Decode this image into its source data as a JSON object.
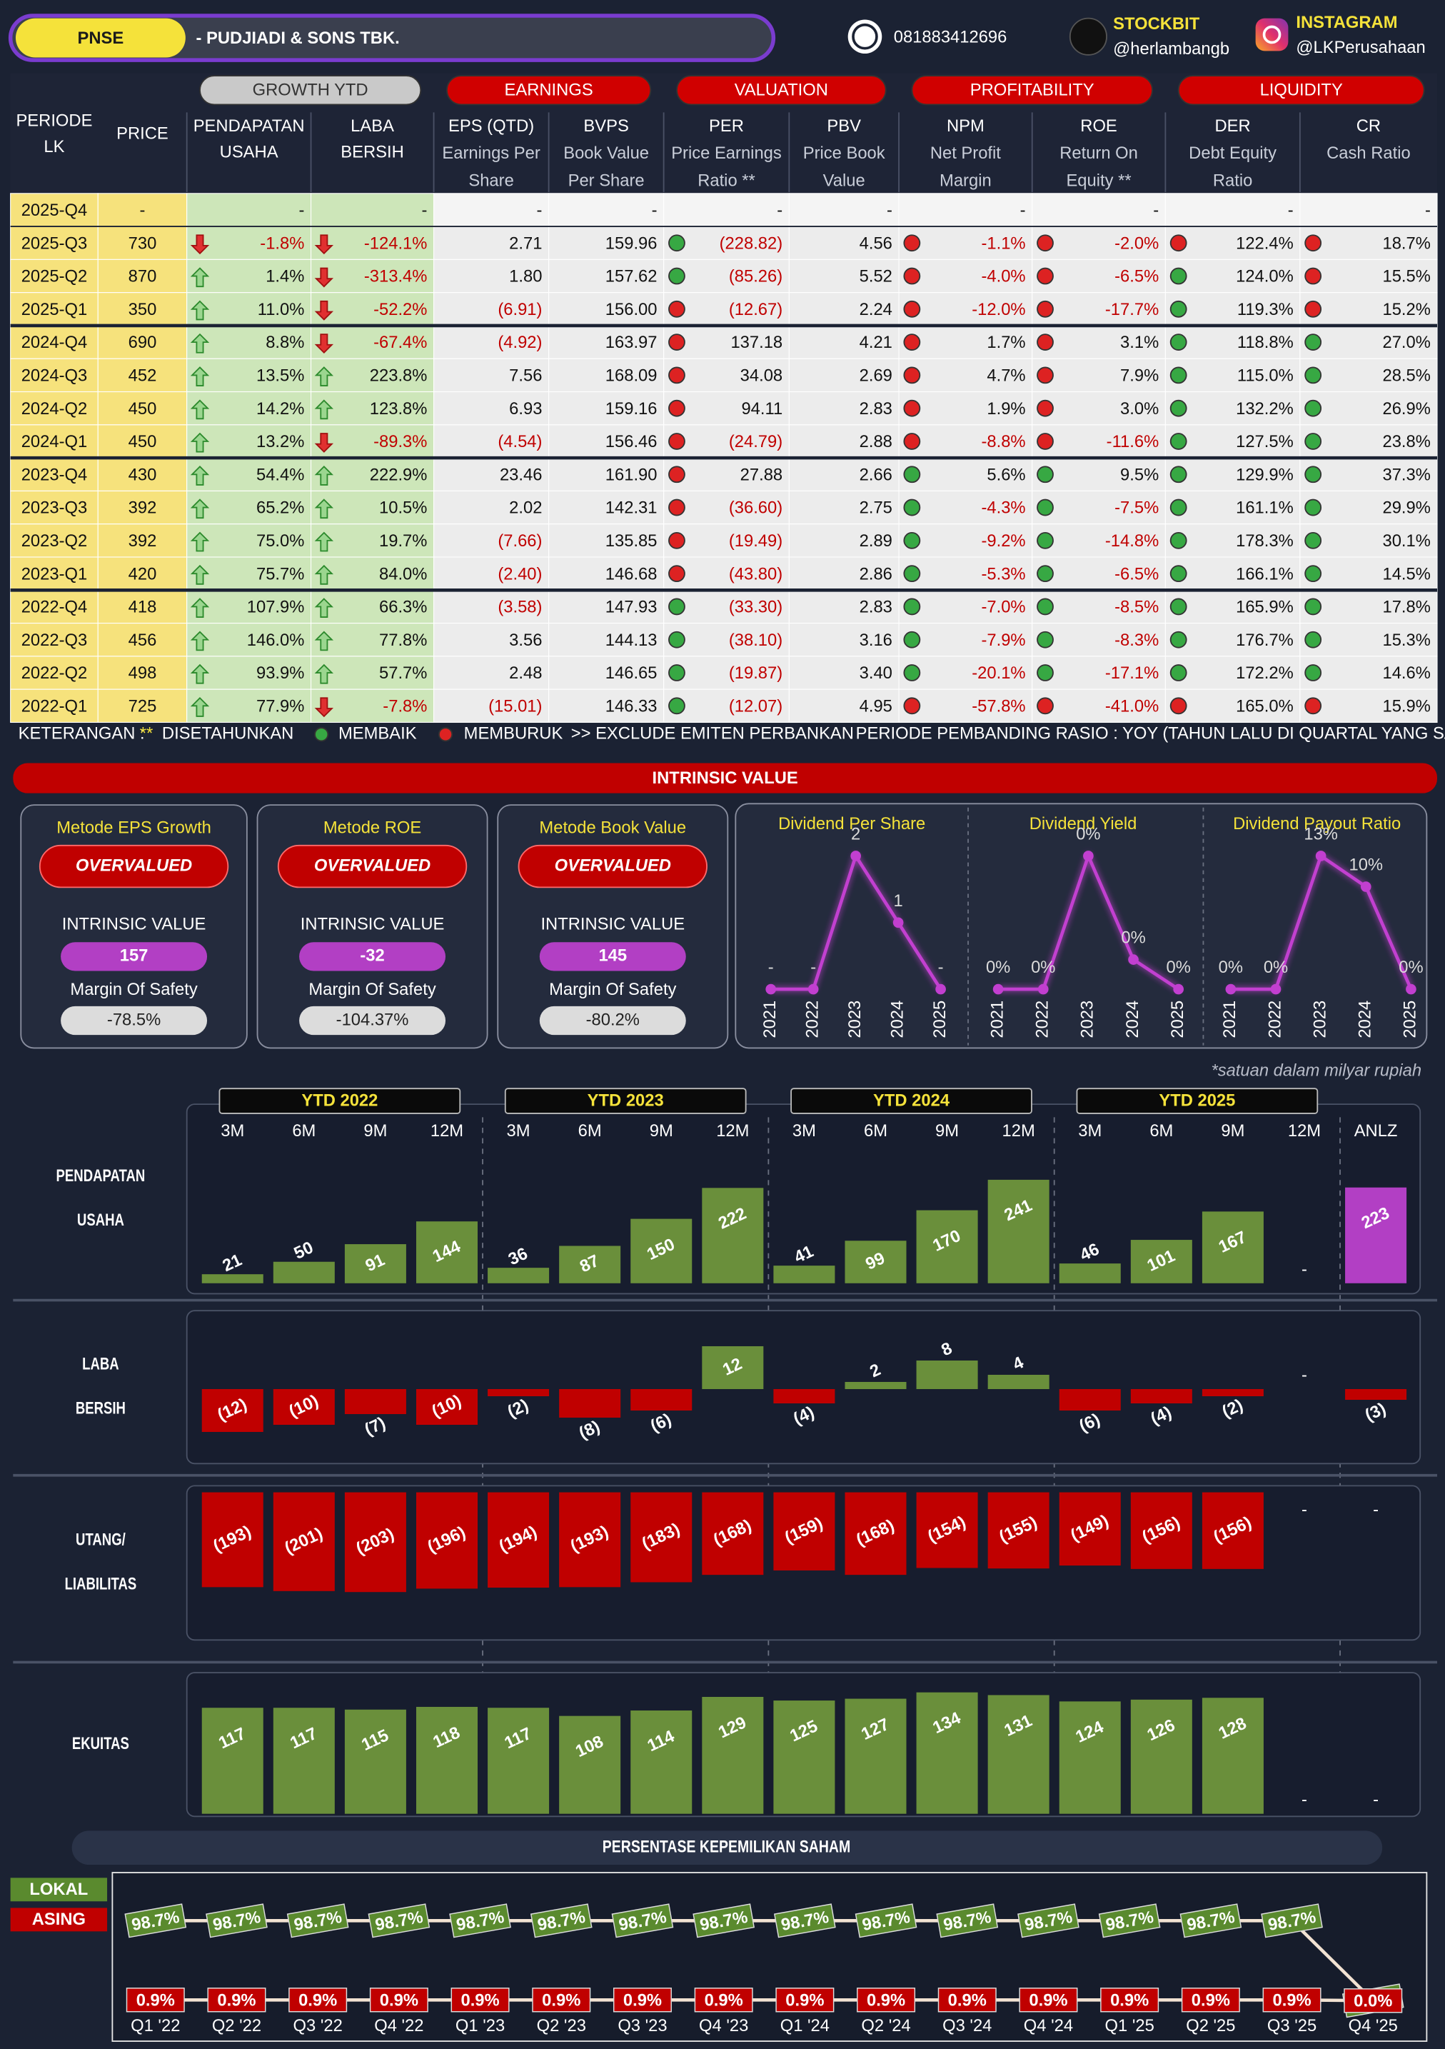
{
  "header": {
    "ticker": "PNSE",
    "company": "- PUDJIADI & SONS TBK.",
    "phone": "081883412696",
    "stockbit_label": "STOCKBIT",
    "stockbit_handle": "@herlambangb",
    "instagram_label": "INSTAGRAM",
    "instagram_handle": "@LKPerusahaan"
  },
  "table": {
    "groups": [
      {
        "label": "GROWTH YTD",
        "color": "#c9c9c9"
      },
      {
        "label": "EARNINGS",
        "color": "#d00000"
      },
      {
        "label": "VALUATION",
        "color": "#d00000"
      },
      {
        "label": "PROFITABILITY",
        "color": "#d00000"
      },
      {
        "label": "LIQUIDITY",
        "color": "#d00000"
      }
    ],
    "columns": [
      [
        "PERIODE",
        "LK"
      ],
      [
        "PRICE"
      ],
      [
        "PENDAPATAN",
        "USAHA"
      ],
      [
        "LABA",
        "BERSIH"
      ],
      [
        "EPS (QTD)",
        "Earnings Per",
        "Share"
      ],
      [
        "BVPS",
        "Book Value",
        "Per Share"
      ],
      [
        "PER",
        "Price Earnings",
        "Ratio **"
      ],
      [
        "PBV",
        "Price Book",
        "Value"
      ],
      [
        "NPM",
        "Net Profit",
        "Margin"
      ],
      [
        "ROE",
        "Return On",
        "Equity **"
      ],
      [
        "DER",
        "Debt Equity",
        "Ratio"
      ],
      [
        "CR",
        "Cash Ratio"
      ]
    ],
    "rows": [
      {
        "cells": [
          "2025-Q4",
          "-",
          "-",
          "-",
          "-",
          "-",
          "-",
          "-",
          "-",
          "-",
          "-",
          "-"
        ],
        "arrows": [
          null,
          null
        ],
        "dots": null
      },
      {
        "cells": [
          "2025-Q3",
          "730",
          "-1.8%",
          "-124.1%",
          "2.71",
          "159.96",
          "(228.82)",
          "4.56",
          "-1.1%",
          "-2.0%",
          "122.4%",
          "18.7%"
        ],
        "arrows": [
          "down",
          "down"
        ],
        "dots": [
          "#37a843",
          "#dd2222",
          "#dd2222",
          "#dd2222",
          "#dd2222"
        ]
      },
      {
        "cells": [
          "2025-Q2",
          "870",
          "1.4%",
          "-313.4%",
          "1.80",
          "157.62",
          "(85.26)",
          "5.52",
          "-4.0%",
          "-6.5%",
          "124.0%",
          "15.5%"
        ],
        "arrows": [
          "up",
          "down"
        ],
        "dots": [
          "#37a843",
          "#dd2222",
          "#dd2222",
          "#37a843",
          "#dd2222"
        ]
      },
      {
        "cells": [
          "2025-Q1",
          "350",
          "11.0%",
          "-52.2%",
          "(6.91)",
          "156.00",
          "(12.67)",
          "2.24",
          "-12.0%",
          "-17.7%",
          "119.3%",
          "15.2%"
        ],
        "arrows": [
          "up",
          "down"
        ],
        "dots": [
          "#dd2222",
          "#dd2222",
          "#dd2222",
          "#37a843",
          "#dd2222"
        ]
      },
      {
        "cells": [
          "2024-Q4",
          "690",
          "8.8%",
          "-67.4%",
          "(4.92)",
          "163.97",
          "137.18",
          "4.21",
          "1.7%",
          "3.1%",
          "118.8%",
          "27.0%"
        ],
        "arrows": [
          "up",
          "down"
        ],
        "dots": [
          "#dd2222",
          "#dd2222",
          "#dd2222",
          "#37a843",
          "#37a843"
        ]
      },
      {
        "cells": [
          "2024-Q3",
          "452",
          "13.5%",
          "223.8%",
          "7.56",
          "168.09",
          "34.08",
          "2.69",
          "4.7%",
          "7.9%",
          "115.0%",
          "28.5%"
        ],
        "arrows": [
          "up",
          "up"
        ],
        "dots": [
          "#dd2222",
          "#dd2222",
          "#dd2222",
          "#37a843",
          "#37a843"
        ]
      },
      {
        "cells": [
          "2024-Q2",
          "450",
          "14.2%",
          "123.8%",
          "6.93",
          "159.16",
          "94.11",
          "2.83",
          "1.9%",
          "3.0%",
          "132.2%",
          "26.9%"
        ],
        "arrows": [
          "up",
          "up"
        ],
        "dots": [
          "#dd2222",
          "#dd2222",
          "#dd2222",
          "#37a843",
          "#37a843"
        ]
      },
      {
        "cells": [
          "2024-Q1",
          "450",
          "13.2%",
          "-89.3%",
          "(4.54)",
          "156.46",
          "(24.79)",
          "2.88",
          "-8.8%",
          "-11.6%",
          "127.5%",
          "23.8%"
        ],
        "arrows": [
          "up",
          "down"
        ],
        "dots": [
          "#dd2222",
          "#dd2222",
          "#dd2222",
          "#37a843",
          "#37a843"
        ]
      },
      {
        "cells": [
          "2023-Q4",
          "430",
          "54.4%",
          "222.9%",
          "23.46",
          "161.90",
          "27.88",
          "2.66",
          "5.6%",
          "9.5%",
          "129.9%",
          "37.3%"
        ],
        "arrows": [
          "up",
          "up"
        ],
        "dots": [
          "#dd2222",
          "#37a843",
          "#37a843",
          "#37a843",
          "#37a843"
        ]
      },
      {
        "cells": [
          "2023-Q3",
          "392",
          "65.2%",
          "10.5%",
          "2.02",
          "142.31",
          "(36.60)",
          "2.75",
          "-4.3%",
          "-7.5%",
          "161.1%",
          "29.9%"
        ],
        "arrows": [
          "up",
          "up"
        ],
        "dots": [
          "#dd2222",
          "#37a843",
          "#37a843",
          "#37a843",
          "#37a843"
        ]
      },
      {
        "cells": [
          "2023-Q2",
          "392",
          "75.0%",
          "19.7%",
          "(7.66)",
          "135.85",
          "(19.49)",
          "2.89",
          "-9.2%",
          "-14.8%",
          "178.3%",
          "30.1%"
        ],
        "arrows": [
          "up",
          "up"
        ],
        "dots": [
          "#dd2222",
          "#37a843",
          "#37a843",
          "#37a843",
          "#37a843"
        ]
      },
      {
        "cells": [
          "2023-Q1",
          "420",
          "75.7%",
          "84.0%",
          "(2.40)",
          "146.68",
          "(43.80)",
          "2.86",
          "-5.3%",
          "-6.5%",
          "166.1%",
          "14.5%"
        ],
        "arrows": [
          "up",
          "up"
        ],
        "dots": [
          "#dd2222",
          "#37a843",
          "#37a843",
          "#37a843",
          "#37a843"
        ]
      },
      {
        "cells": [
          "2022-Q4",
          "418",
          "107.9%",
          "66.3%",
          "(3.58)",
          "147.93",
          "(33.30)",
          "2.83",
          "-7.0%",
          "-8.5%",
          "165.9%",
          "17.8%"
        ],
        "arrows": [
          "up",
          "up"
        ],
        "dots": [
          "#37a843",
          "#37a843",
          "#37a843",
          "#37a843",
          "#37a843"
        ]
      },
      {
        "cells": [
          "2022-Q3",
          "456",
          "146.0%",
          "77.8%",
          "3.56",
          "144.13",
          "(38.10)",
          "3.16",
          "-7.9%",
          "-8.3%",
          "176.7%",
          "15.3%"
        ],
        "arrows": [
          "up",
          "up"
        ],
        "dots": [
          "#37a843",
          "#37a843",
          "#37a843",
          "#37a843",
          "#37a843"
        ]
      },
      {
        "cells": [
          "2022-Q2",
          "498",
          "93.9%",
          "57.7%",
          "2.48",
          "146.65",
          "(19.87)",
          "3.40",
          "-20.1%",
          "-17.1%",
          "172.2%",
          "14.6%"
        ],
        "arrows": [
          "up",
          "up"
        ],
        "dots": [
          "#37a843",
          "#37a843",
          "#37a843",
          "#37a843",
          "#37a843"
        ]
      },
      {
        "cells": [
          "2022-Q1",
          "725",
          "77.9%",
          "-7.8%",
          "(15.01)",
          "146.33",
          "(12.07)",
          "4.95",
          "-57.8%",
          "-41.0%",
          "165.0%",
          "15.9%"
        ],
        "arrows": [
          "up",
          "down"
        ],
        "dots": [
          "#37a843",
          "#dd2222",
          "#dd2222",
          "#dd2222",
          "#dd2222"
        ]
      }
    ]
  },
  "notes": {
    "label": "KETERANGAN :",
    "annualized_mark": "**",
    "annualized": "DISETAHUNKAN",
    "better": "MEMBAIK",
    "better_color": "#37a843",
    "worse": "MEMBURUK",
    "worse_color": "#dd2222",
    "exclude": ">> EXCLUDE EMITEN PERBANKAN",
    "comparison": "PERIODE PEMBANDING RASIO : YOY (TAHUN LALU DI QUARTAL YANG SAMA)"
  },
  "intrinsic": {
    "title": "INTRINSIC VALUE",
    "methods": [
      {
        "name": "Metode EPS Growth",
        "verdict": "OVERVALUED",
        "value_label": "INTRINSIC VALUE",
        "value": "157",
        "mos_label": "Margin Of Safety",
        "mos": "-78.5%"
      },
      {
        "name": "Metode ROE",
        "verdict": "OVERVALUED",
        "value_label": "INTRINSIC VALUE",
        "value": "-32",
        "mos_label": "Margin Of Safety",
        "mos": "-104.37%"
      },
      {
        "name": "Metode Book Value",
        "verdict": "OVERVALUED",
        "value_label": "INTRINSIC VALUE",
        "value": "145",
        "mos_label": "Margin Of Safety",
        "mos": "-80.2%"
      }
    ]
  },
  "chart_data": [
    {
      "type": "line",
      "title": "Dividend Per Share",
      "categories": [
        "2021",
        "2022",
        "2023",
        "2024",
        "2025"
      ],
      "values": [
        0,
        0,
        2,
        1,
        0
      ],
      "value_labels": [
        "-",
        "-",
        "2",
        "1",
        "-"
      ],
      "color": "#c23fd0"
    },
    {
      "type": "line",
      "title": "Dividend Yield",
      "categories": [
        "2021",
        "2022",
        "2023",
        "2024",
        "2025"
      ],
      "values": [
        0,
        0,
        0.45,
        0.1,
        0
      ],
      "value_labels": [
        "0%",
        "0%",
        "0%",
        "0%",
        "0%"
      ],
      "color": "#c23fd0"
    },
    {
      "type": "line",
      "title": "Dividend Payout Ratio",
      "categories": [
        "2021",
        "2022",
        "2023",
        "2024",
        "2025"
      ],
      "values": [
        0,
        0,
        13,
        10,
        0
      ],
      "value_labels": [
        "0%",
        "0%",
        "13%",
        "10%",
        "0%"
      ],
      "color": "#c23fd0"
    },
    {
      "type": "bar",
      "title": [
        "PENDAPATAN",
        "USAHA"
      ],
      "note": "*satuan dalam milyar rupiah",
      "groups": [
        "YTD 2022",
        "YTD 2023",
        "YTD 2024",
        "YTD 2025"
      ],
      "categories": [
        "3M",
        "6M",
        "9M",
        "12M",
        "3M",
        "6M",
        "9M",
        "12M",
        "3M",
        "6M",
        "9M",
        "12M",
        "3M",
        "6M",
        "9M",
        "12M",
        "ANLZ"
      ],
      "values": [
        21,
        50,
        91,
        144,
        36,
        87,
        150,
        222,
        41,
        99,
        170,
        241,
        46,
        101,
        167,
        null,
        223
      ],
      "value_labels": [
        "21",
        "50",
        "91",
        "144",
        "36",
        "87",
        "150",
        "222",
        "41",
        "99",
        "170",
        "241",
        "46",
        "101",
        "167",
        "-",
        "223"
      ],
      "color": "#6a8f3b",
      "anlz_color": "#b23fc4",
      "ylim": [
        0,
        280
      ]
    },
    {
      "type": "bar",
      "title": [
        "LABA",
        "BERSIH"
      ],
      "values": [
        -12,
        -10,
        -7,
        -10,
        -2,
        -8,
        -6,
        12,
        -4,
        2,
        8,
        4,
        -6,
        -4,
        -2,
        null,
        -3
      ],
      "value_labels": [
        "(12)",
        "(10)",
        "(7)",
        "(10)",
        "(2)",
        "(8)",
        "(6)",
        "12",
        "(4)",
        "2",
        "8",
        "4",
        "(6)",
        "(4)",
        "(2)",
        "-",
        "(3)"
      ],
      "color": "#6a8f3b",
      "negative_color": "#c00000",
      "ylim": [
        -15,
        15
      ]
    },
    {
      "type": "bar",
      "title": [
        "UTANG/",
        "LIABILITAS"
      ],
      "values": [
        -193,
        -201,
        -203,
        -196,
        -194,
        -193,
        -183,
        -168,
        -159,
        -168,
        -154,
        -155,
        -149,
        -156,
        -156,
        null,
        null
      ],
      "value_labels": [
        "(193)",
        "(201)",
        "(203)",
        "(196)",
        "(194)",
        "(193)",
        "(183)",
        "(168)",
        "(159)",
        "(168)",
        "(154)",
        "(155)",
        "(149)",
        "(156)",
        "(156)",
        "-",
        "-"
      ],
      "color": "#c00000",
      "ylim": [
        -250,
        0
      ]
    },
    {
      "type": "bar",
      "title": [
        "EKUITAS"
      ],
      "values": [
        117,
        117,
        115,
        118,
        117,
        108,
        114,
        129,
        125,
        127,
        134,
        131,
        124,
        126,
        128,
        null,
        null
      ],
      "value_labels": [
        "117",
        "117",
        "115",
        "118",
        "117",
        "108",
        "114",
        "129",
        "125",
        "127",
        "134",
        "131",
        "124",
        "126",
        "128",
        "-",
        "-"
      ],
      "color": "#6a8f3b",
      "ylim": [
        0,
        150
      ]
    },
    {
      "type": "line",
      "title": "PERSENTASE KEPEMILIKAN SAHAM",
      "categories": [
        "Q1 '22",
        "Q2 '22",
        "Q3 '22",
        "Q4 '22",
        "Q1 '23",
        "Q2 '23",
        "Q3 '23",
        "Q4 '23",
        "Q1 '24",
        "Q2 '24",
        "Q3 '24",
        "Q4 '24",
        "Q1 '25",
        "Q2 '25",
        "Q3 '25",
        "Q4 '25"
      ],
      "ylim": [
        0,
        100
      ],
      "series": [
        {
          "name": "LOKAL",
          "color": "#5a8a2e",
          "values": [
            98.7,
            98.7,
            98.7,
            98.7,
            98.7,
            98.7,
            98.7,
            98.7,
            98.7,
            98.7,
            98.7,
            98.7,
            98.7,
            98.7,
            98.7,
            0
          ],
          "value_labels": [
            "98.7%",
            "98.7%",
            "98.7%",
            "98.7%",
            "98.7%",
            "98.7%",
            "98.7%",
            "98.7%",
            "98.7%",
            "98.7%",
            "98.7%",
            "98.7%",
            "98.7%",
            "98.7%",
            "98.7%",
            "0.0%"
          ]
        },
        {
          "name": "ASING",
          "color": "#c00000",
          "values": [
            0.9,
            0.9,
            0.9,
            0.9,
            0.9,
            0.9,
            0.9,
            0.9,
            0.9,
            0.9,
            0.9,
            0.9,
            0.9,
            0.9,
            0.9,
            0
          ],
          "value_labels": [
            "0.9%",
            "0.9%",
            "0.9%",
            "0.9%",
            "0.9%",
            "0.9%",
            "0.9%",
            "0.9%",
            "0.9%",
            "0.9%",
            "0.9%",
            "0.9%",
            "0.9%",
            "0.9%",
            "0.9%",
            "0.0%"
          ]
        }
      ]
    }
  ]
}
